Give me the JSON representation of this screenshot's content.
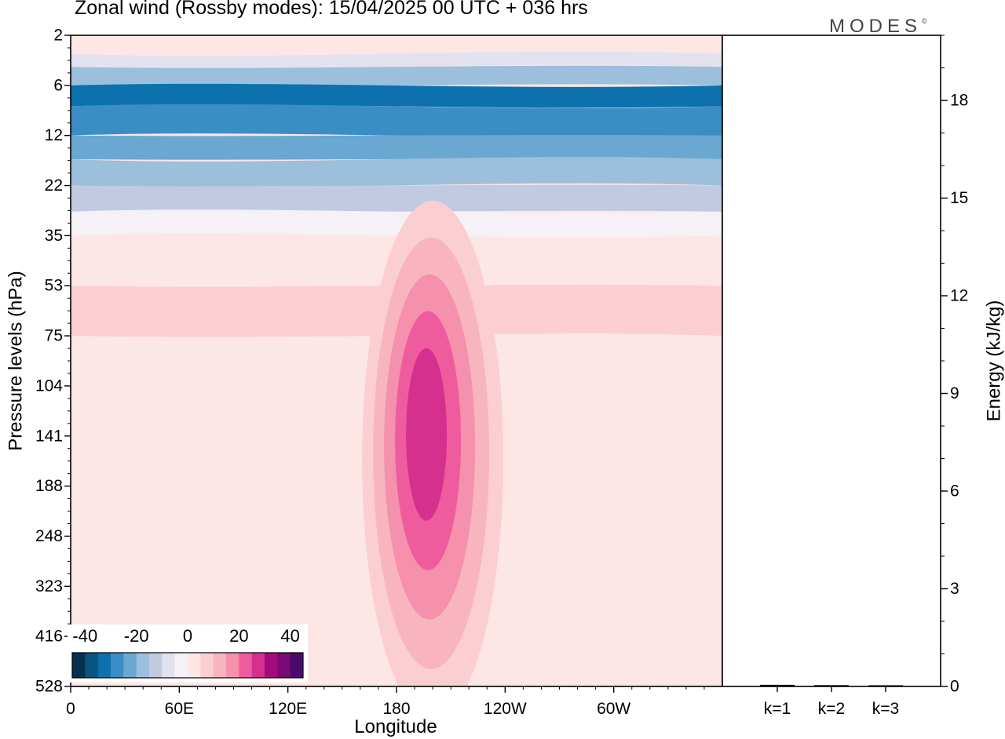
{
  "title": "Zonal wind (Rossby modes):  15/04/2025  00 UTC  + 036 hrs",
  "logo": "MODES",
  "logo_mark": "©",
  "chart_data": [
    {
      "type": "heatmap",
      "title": "Zonal wind (Rossby modes):  15/04/2025  00 UTC  + 036 hrs",
      "xlabel": "Longitude",
      "ylabel": "Pressure levels (hPa)",
      "x_ticks": [
        "0",
        "60E",
        "120E",
        "180",
        "120W",
        "60W"
      ],
      "y_ticks": [
        "2",
        "6",
        "12",
        "22",
        "35",
        "53",
        "75",
        "104",
        "141",
        "188",
        "248",
        "323",
        "416",
        "528"
      ],
      "colorbar": {
        "ticks": [
          "-40",
          "-20",
          "0",
          "20",
          "40"
        ],
        "levels": [
          -40,
          -35,
          -30,
          -25,
          -20,
          -15,
          -10,
          -5,
          0,
          5,
          10,
          15,
          20,
          25,
          30,
          35,
          40
        ],
        "colors": [
          "#06304d",
          "#08557f",
          "#0c71ad",
          "#3a8ec5",
          "#6aa8d2",
          "#9cbfdc",
          "#c2cae2",
          "#e2e2ee",
          "#f5f1f6",
          "#fde6e6",
          "#fbcfd2",
          "#f8b5bf",
          "#f590ad",
          "#ef5c9e",
          "#d6308f",
          "#a50a7c",
          "#7a0a74",
          "#4b0a6b"
        ]
      },
      "field_rows": [
        {
          "level": "2",
          "value": 0
        },
        {
          "level": "3",
          "value": -10
        },
        {
          "level": "4",
          "value": -20
        },
        {
          "level": "6",
          "value": -33
        },
        {
          "level": "8",
          "value": -30
        },
        {
          "level": "12",
          "value": -25
        },
        {
          "level": "16",
          "value": -20
        },
        {
          "level": "22",
          "value": -12
        },
        {
          "level": "28",
          "value": -3
        },
        {
          "level": "35",
          "value": 3
        },
        {
          "level": "53",
          "value": 8
        },
        {
          "level": "75",
          "value": 3
        },
        {
          "level": "104",
          "value": 0
        },
        {
          "level": "528",
          "value": 0
        }
      ],
      "jet_core": {
        "longitude": 200,
        "level": "141",
        "max_value": 25
      }
    },
    {
      "type": "bar",
      "ylabel": "Energy (kJ/kg)",
      "categories": [
        "k=1",
        "k=2",
        "k=3"
      ],
      "values": [
        0.05,
        0.04,
        0.03
      ],
      "y_ticks": [
        "0",
        "3",
        "6",
        "9",
        "12",
        "15",
        "18"
      ],
      "ylim": [
        0,
        20
      ]
    }
  ]
}
